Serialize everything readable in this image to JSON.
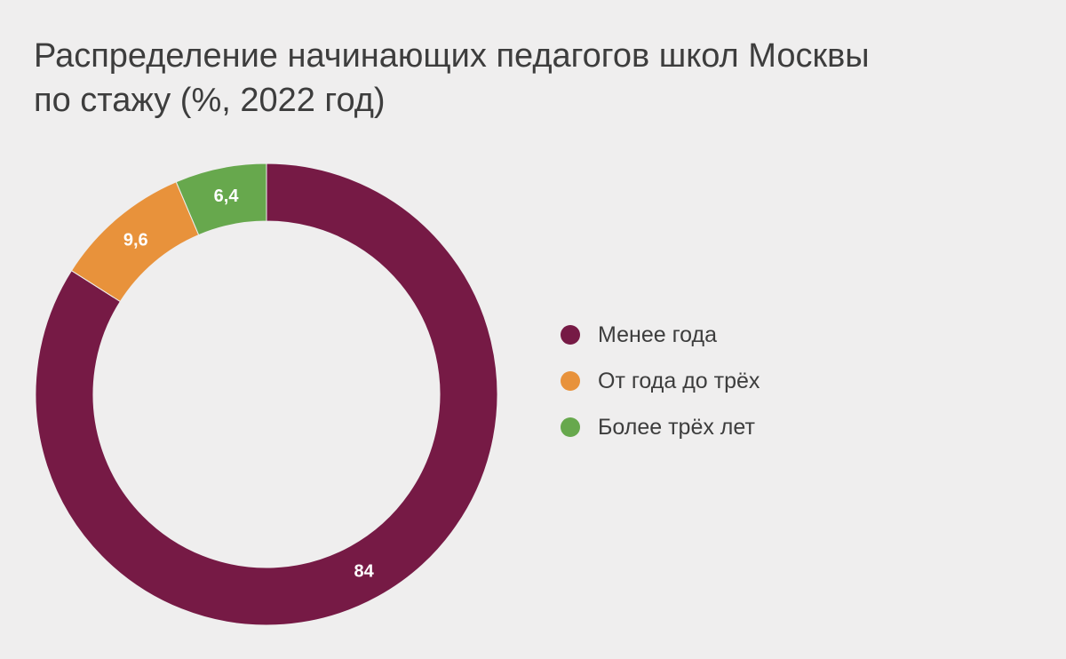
{
  "chart_data": {
    "type": "pie",
    "title": "Распределение начинающих педагогов школ Москвы по стажу (%, 2022 год)",
    "title_lines": [
      "Распределение начинающих педагогов школ Москвы",
      "по стажу (%, 2022 год)"
    ],
    "donut": true,
    "legend_position": "right",
    "categories": [
      "Менее года",
      "От года до трёх",
      "Более трёх лет"
    ],
    "values": [
      84,
      9.6,
      6.4
    ],
    "value_labels": [
      "84",
      "9,6",
      "6,4"
    ],
    "colors": [
      "#761a45",
      "#e8923b",
      "#67a84d"
    ]
  }
}
